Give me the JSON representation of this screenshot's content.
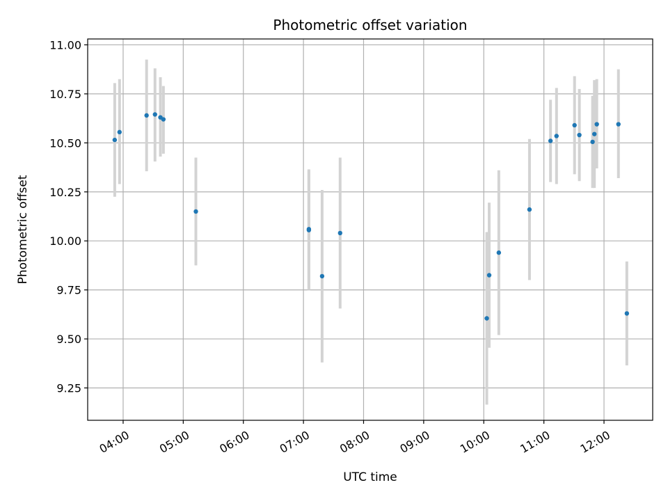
{
  "chart_data": {
    "type": "scatter",
    "title": "Photometric offset variation",
    "xlabel": "UTC time",
    "ylabel": "Photometric offset",
    "x_unit": "UTC hour of day",
    "xlim": [
      3.41,
      12.81
    ],
    "ylim": [
      9.085,
      11.03
    ],
    "grid": true,
    "marker_color": "#1f77b4",
    "errorbar_color": "#d3d3d3",
    "x_ticks": [
      {
        "value": 4,
        "label": "04:00"
      },
      {
        "value": 5,
        "label": "05:00"
      },
      {
        "value": 6,
        "label": "06:00"
      },
      {
        "value": 7,
        "label": "07:00"
      },
      {
        "value": 8,
        "label": "08:00"
      },
      {
        "value": 9,
        "label": "09:00"
      },
      {
        "value": 10,
        "label": "10:00"
      },
      {
        "value": 11,
        "label": "11:00"
      },
      {
        "value": 12,
        "label": "12:00"
      }
    ],
    "y_ticks": [
      {
        "value": 9.25,
        "label": "9.25"
      },
      {
        "value": 9.5,
        "label": "9.50"
      },
      {
        "value": 9.75,
        "label": "9.75"
      },
      {
        "value": 10.0,
        "label": "10.00"
      },
      {
        "value": 10.25,
        "label": "10.25"
      },
      {
        "value": 10.5,
        "label": "10.50"
      },
      {
        "value": 10.75,
        "label": "10.75"
      },
      {
        "value": 11.0,
        "label": "11.00"
      }
    ],
    "points": [
      {
        "x": 3.86,
        "y": 10.515,
        "err_low": 10.225,
        "err_high": 10.805
      },
      {
        "x": 3.94,
        "y": 10.555,
        "err_low": 10.29,
        "err_high": 10.825
      },
      {
        "x": 4.39,
        "y": 10.64,
        "err_low": 10.355,
        "err_high": 10.925
      },
      {
        "x": 4.53,
        "y": 10.645,
        "err_low": 10.405,
        "err_high": 10.88
      },
      {
        "x": 4.62,
        "y": 10.63,
        "err_low": 10.43,
        "err_high": 10.835
      },
      {
        "x": 4.67,
        "y": 10.62,
        "err_low": 10.445,
        "err_high": 10.79
      },
      {
        "x": 5.21,
        "y": 10.15,
        "err_low": 9.875,
        "err_high": 10.425
      },
      {
        "x": 7.09,
        "y": 10.06,
        "err_low": 9.75,
        "err_high": 10.365
      },
      {
        "x": 7.09,
        "y": 10.055,
        "err_low": 9.75,
        "err_high": 10.36
      },
      {
        "x": 7.31,
        "y": 9.82,
        "err_low": 9.38,
        "err_high": 10.26
      },
      {
        "x": 7.61,
        "y": 10.04,
        "err_low": 9.655,
        "err_high": 10.425
      },
      {
        "x": 10.05,
        "y": 9.605,
        "err_low": 9.165,
        "err_high": 10.045
      },
      {
        "x": 10.09,
        "y": 9.825,
        "err_low": 9.455,
        "err_high": 10.195
      },
      {
        "x": 10.25,
        "y": 9.94,
        "err_low": 9.52,
        "err_high": 10.36
      },
      {
        "x": 10.76,
        "y": 10.16,
        "err_low": 9.8,
        "err_high": 10.52
      },
      {
        "x": 11.11,
        "y": 10.51,
        "err_low": 10.3,
        "err_high": 10.72
      },
      {
        "x": 11.21,
        "y": 10.535,
        "err_low": 10.29,
        "err_high": 10.78
      },
      {
        "x": 11.51,
        "y": 10.59,
        "err_low": 10.34,
        "err_high": 10.84
      },
      {
        "x": 11.59,
        "y": 10.54,
        "err_low": 10.305,
        "err_high": 10.775
      },
      {
        "x": 11.81,
        "y": 10.505,
        "err_low": 10.27,
        "err_high": 10.74
      },
      {
        "x": 11.84,
        "y": 10.545,
        "err_low": 10.27,
        "err_high": 10.82
      },
      {
        "x": 11.88,
        "y": 10.595,
        "err_low": 10.37,
        "err_high": 10.825
      },
      {
        "x": 12.24,
        "y": 10.595,
        "err_low": 10.32,
        "err_high": 10.875
      },
      {
        "x": 12.38,
        "y": 9.63,
        "err_low": 9.365,
        "err_high": 9.895
      }
    ]
  }
}
